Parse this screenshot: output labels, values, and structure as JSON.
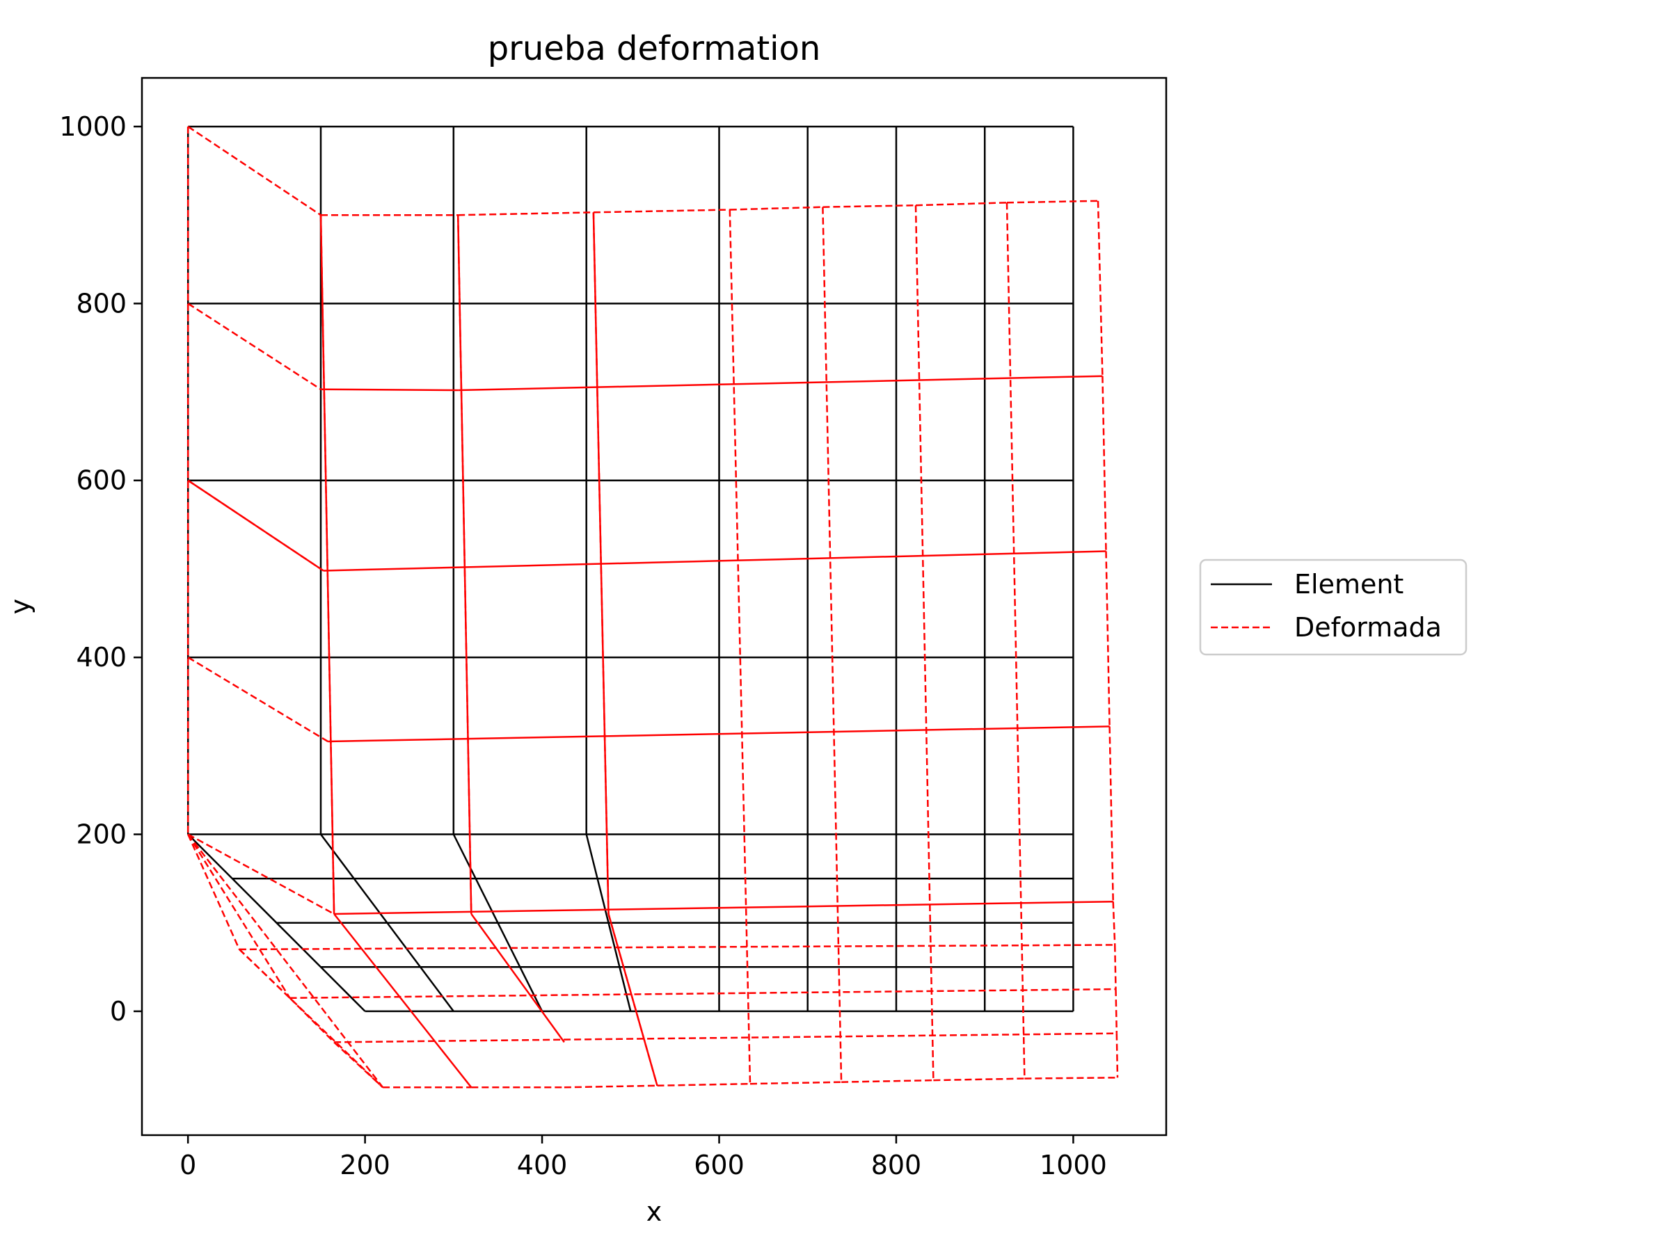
{
  "chart_data": {
    "type": "line",
    "title": "prueba deformation",
    "xlabel": "x",
    "ylabel": "y",
    "xlim": [
      -52,
      1105
    ],
    "ylim": [
      -140,
      1055
    ],
    "xticks": [
      0,
      200,
      400,
      600,
      800,
      1000
    ],
    "yticks": [
      0,
      200,
      400,
      600,
      800,
      1000
    ],
    "xtick_labels": [
      "0",
      "200",
      "400",
      "600",
      "800",
      "1000"
    ],
    "ytick_labels": [
      "0",
      "200",
      "400",
      "600",
      "800",
      "1000"
    ],
    "grid": false,
    "legend_position": "outside-right",
    "colors": {
      "element": "#000000",
      "deformada": "#ff0000"
    },
    "series": [
      {
        "name": "Element",
        "style": "solid",
        "color": "#000000",
        "segments": [
          [
            [
              0,
              200
            ],
            [
              0,
              1000
            ]
          ],
          [
            [
              150,
              200
            ],
            [
              150,
              1000
            ]
          ],
          [
            [
              300,
              200
            ],
            [
              300,
              1000
            ]
          ],
          [
            [
              450,
              200
            ],
            [
              450,
              1000
            ]
          ],
          [
            [
              600,
              0
            ],
            [
              600,
              1000
            ]
          ],
          [
            [
              700,
              0
            ],
            [
              700,
              1000
            ]
          ],
          [
            [
              800,
              0
            ],
            [
              800,
              1000
            ]
          ],
          [
            [
              900,
              0
            ],
            [
              900,
              1000
            ]
          ],
          [
            [
              1000,
              0
            ],
            [
              1000,
              1000
            ]
          ],
          [
            [
              0,
              1000
            ],
            [
              1000,
              1000
            ]
          ],
          [
            [
              0,
              800
            ],
            [
              1000,
              800
            ]
          ],
          [
            [
              0,
              600
            ],
            [
              1000,
              600
            ]
          ],
          [
            [
              0,
              400
            ],
            [
              1000,
              400
            ]
          ],
          [
            [
              0,
              200
            ],
            [
              1000,
              200
            ]
          ],
          [
            [
              50,
              150
            ],
            [
              1000,
              150
            ]
          ],
          [
            [
              100,
              100
            ],
            [
              1000,
              100
            ]
          ],
          [
            [
              150,
              50
            ],
            [
              1000,
              50
            ]
          ],
          [
            [
              200,
              0
            ],
            [
              1000,
              0
            ]
          ],
          [
            [
              0,
              200
            ],
            [
              200,
              0
            ]
          ],
          [
            [
              150,
              200
            ],
            [
              300,
              0
            ]
          ],
          [
            [
              300,
              200
            ],
            [
              400,
              0
            ]
          ],
          [
            [
              450,
              200
            ],
            [
              500,
              0
            ]
          ]
        ]
      },
      {
        "name": "Deformada",
        "style": "dashed",
        "color": "#ff0000",
        "segments": [
          [
            [
              0,
              1000
            ],
            [
              0,
              200
            ]
          ],
          [
            [
              0,
              1000
            ],
            [
              150,
              900
            ]
          ],
          [
            [
              150,
              900
            ],
            [
              305,
              900
            ]
          ],
          [
            [
              305,
              900
            ],
            [
              458,
              903
            ]
          ],
          [
            [
              458,
              903
            ],
            [
              612,
              906
            ]
          ],
          [
            [
              612,
              906
            ],
            [
              717,
              909
            ]
          ],
          [
            [
              717,
              909
            ],
            [
              822,
              911
            ]
          ],
          [
            [
              822,
              911
            ],
            [
              925,
              914
            ]
          ],
          [
            [
              925,
              914
            ],
            [
              1028,
              916
            ]
          ],
          [
            [
              1028,
              916
            ],
            [
              1033,
              718
            ]
          ],
          [
            [
              1033,
              718
            ],
            [
              1037,
              520
            ]
          ],
          [
            [
              1037,
              520
            ],
            [
              1041,
              322
            ]
          ],
          [
            [
              1041,
              322
            ],
            [
              1045,
              124
            ]
          ],
          [
            [
              1045,
              124
            ],
            [
              1047,
              75
            ]
          ],
          [
            [
              1047,
              75
            ],
            [
              1048,
              25
            ]
          ],
          [
            [
              1048,
              25
            ],
            [
              1049,
              -25
            ]
          ],
          [
            [
              1049,
              -25
            ],
            [
              1050,
              -75
            ]
          ],
          [
            [
              0,
              800
            ],
            [
              150,
              703
            ]
          ],
          [
            [
              0,
              600
            ],
            [
              153,
              498
            ]
          ],
          [
            [
              0,
              400
            ],
            [
              158,
              305
            ]
          ],
          [
            [
              0,
              200
            ],
            [
              165,
              110
            ]
          ],
          [
            [
              0,
              200
            ],
            [
              58,
              70
            ]
          ],
          [
            [
              0,
              200
            ],
            [
              115,
              15
            ]
          ],
          [
            [
              58,
              70
            ],
            [
              115,
              15
            ]
          ],
          [
            [
              115,
              15
            ],
            [
              165,
              -35
            ]
          ],
          [
            [
              165,
              -35
            ],
            [
              220,
              -86
            ]
          ],
          [
            [
              0,
              200
            ],
            [
              220,
              -86
            ]
          ],
          [
            [
              58,
              70
            ],
            [
              220,
              -86
            ]
          ],
          [
            [
              58,
              70
            ],
            [
              1046,
              75
            ]
          ],
          [
            [
              115,
              15
            ],
            [
              1048,
              25
            ]
          ],
          [
            [
              165,
              -35
            ],
            [
              1049,
              -25
            ]
          ],
          [
            [
              220,
              -86
            ],
            [
              320,
              -86
            ]
          ],
          [
            [
              320,
              -86
            ],
            [
              425,
              -86
            ]
          ],
          [
            [
              425,
              -86
            ],
            [
              530,
              -84
            ]
          ],
          [
            [
              530,
              -84
            ],
            [
              635,
              -82
            ]
          ],
          [
            [
              635,
              -82
            ],
            [
              738,
              -80
            ]
          ],
          [
            [
              738,
              -80
            ],
            [
              842,
              -78
            ]
          ],
          [
            [
              842,
              -78
            ],
            [
              945,
              -76
            ]
          ],
          [
            [
              945,
              -76
            ],
            [
              1050,
              -75
            ]
          ],
          [
            [
              150,
              900
            ],
            [
              165,
              110
            ]
          ],
          [
            [
              305,
              900
            ],
            [
              320,
              110
            ]
          ],
          [
            [
              458,
              903
            ],
            [
              475,
              110
            ]
          ],
          [
            [
              475,
              110
            ],
            [
              530,
              -84
            ]
          ],
          [
            [
              612,
              906
            ],
            [
              635,
              -82
            ]
          ],
          [
            [
              717,
              909
            ],
            [
              738,
              -80
            ]
          ],
          [
            [
              822,
              911
            ],
            [
              842,
              -78
            ]
          ],
          [
            [
              925,
              914
            ],
            [
              945,
              -76
            ]
          ]
        ]
      },
      {
        "name": "",
        "style": "solid",
        "color": "#ff0000",
        "segments": [
          [
            [
              150,
              703
            ],
            [
              305,
              702
            ]
          ],
          [
            [
              305,
              702
            ],
            [
              1033,
              718
            ]
          ],
          [
            [
              153,
              498
            ],
            [
              1037,
              520
            ]
          ],
          [
            [
              158,
              305
            ],
            [
              1041,
              322
            ]
          ],
          [
            [
              165,
              110
            ],
            [
              1045,
              124
            ]
          ],
          [
            [
              150,
              900
            ],
            [
              165,
              110
            ]
          ],
          [
            [
              305,
              900
            ],
            [
              320,
              110
            ]
          ],
          [
            [
              458,
              903
            ],
            [
              475,
              110
            ]
          ],
          [
            [
              0,
              600
            ],
            [
              153,
              498
            ]
          ],
          [
            [
              165,
              110
            ],
            [
              320,
              -86
            ]
          ],
          [
            [
              320,
              110
            ],
            [
              425,
              -35
            ]
          ],
          [
            [
              475,
              110
            ],
            [
              530,
              -84
            ]
          ]
        ]
      }
    ]
  },
  "legend": {
    "items": [
      {
        "label": "Element",
        "style": "solid",
        "color": "#000000"
      },
      {
        "label": "Deformada",
        "style": "dashed",
        "color": "#ff0000"
      }
    ]
  }
}
